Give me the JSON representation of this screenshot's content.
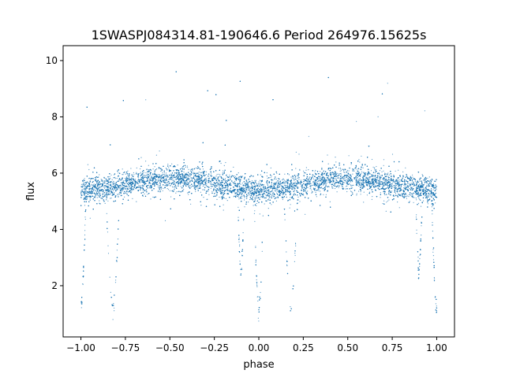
{
  "chart_data": {
    "type": "scatter",
    "title": "1SWASPJ084314.81-190646.6 Period 264976.15625s",
    "xlabel": "phase",
    "ylabel": "flux",
    "xlim": [
      -1.1,
      1.1
    ],
    "ylim": [
      0.18,
      10.53
    ],
    "xticks": [
      -1.0,
      -0.75,
      -0.5,
      -0.25,
      0.0,
      0.25,
      0.5,
      0.75,
      1.0
    ],
    "xtick_labels": [
      "−1.00",
      "−0.75",
      "−0.50",
      "−0.25",
      "0.00",
      "0.25",
      "0.50",
      "0.75",
      "1.00"
    ],
    "yticks": [
      2,
      4,
      6,
      8,
      10
    ],
    "ytick_labels": [
      "2",
      "4",
      "6",
      "8",
      "10"
    ],
    "grid": false,
    "legend": "none",
    "point_color": "#1f77b4",
    "series_model": {
      "description": "phase-folded light curve, dense points, mirrored over phase [-1,1]",
      "n_points": 14000,
      "baseline_flux_at_phase_0": 5.4,
      "baseline_flux_at_phase_0_5": 5.8,
      "noise_sd": 0.22,
      "eclipses": [
        {
          "phase": -1.0,
          "min_flux": 1.1,
          "half_width": 0.03
        },
        {
          "phase": -0.82,
          "min_flux": 1.1,
          "half_width": 0.04
        },
        {
          "phase": -0.1,
          "min_flux": 2.5,
          "half_width": 0.02
        },
        {
          "phase": 0.0,
          "min_flux": 1.1,
          "half_width": 0.03
        },
        {
          "phase": 0.18,
          "min_flux": 1.1,
          "half_width": 0.04
        },
        {
          "phase": 0.9,
          "min_flux": 2.5,
          "half_width": 0.02
        },
        {
          "phase": 1.0,
          "min_flux": 1.1,
          "half_width": 0.03
        }
      ],
      "eclipse_fraction": 0.05,
      "outlier_max_flux": 10.1
    }
  }
}
